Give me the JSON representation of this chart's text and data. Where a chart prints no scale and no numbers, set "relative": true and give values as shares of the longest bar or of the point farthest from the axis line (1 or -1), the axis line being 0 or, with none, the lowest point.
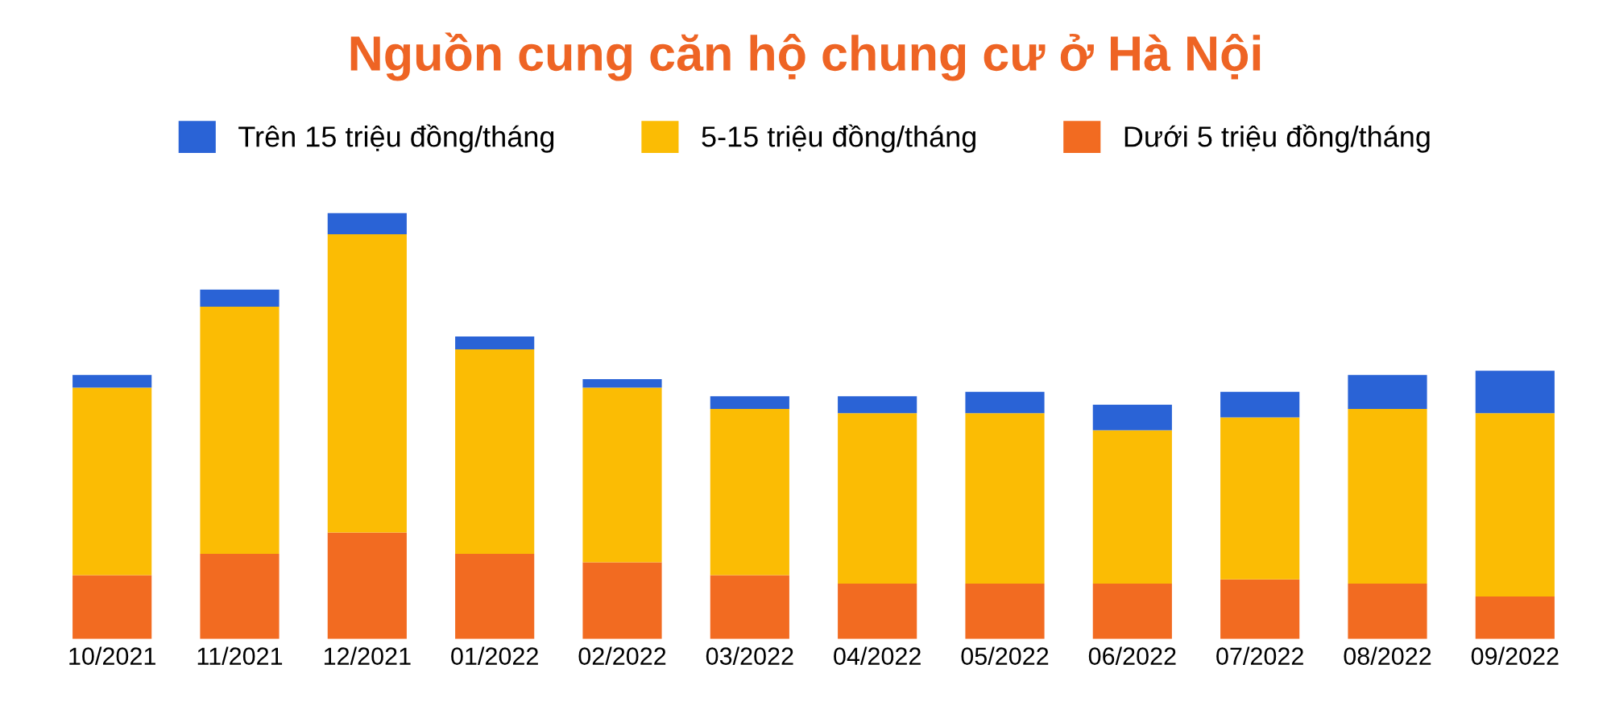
{
  "chart_data": {
    "type": "bar",
    "title": "Nguồn cung căn hộ chung cư ở Hà Nội",
    "categories": [
      "10/2021",
      "11/2021",
      "12/2021",
      "01/2022",
      "02/2022",
      "03/2022",
      "04/2022",
      "05/2022",
      "06/2022",
      "07/2022",
      "08/2022",
      "09/2022"
    ],
    "stacked": true,
    "relative": true,
    "legend": "top",
    "grid": false,
    "series": [
      {
        "name": "Dưới 5 triệu đồng/tháng",
        "color": "#f26b21",
        "values": [
          0.15,
          0.2,
          0.25,
          0.2,
          0.18,
          0.15,
          0.13,
          0.13,
          0.13,
          0.14,
          0.13,
          0.1
        ]
      },
      {
        "name": "5-15 triệu đồng/tháng",
        "color": "#fbbc04",
        "values": [
          0.44,
          0.58,
          0.7,
          0.48,
          0.41,
          0.39,
          0.4,
          0.4,
          0.36,
          0.38,
          0.41,
          0.43
        ]
      },
      {
        "name": "Trên 15 triệu đồng/tháng",
        "color": "#2a63d6",
        "values": [
          0.03,
          0.04,
          0.05,
          0.03,
          0.02,
          0.03,
          0.04,
          0.05,
          0.06,
          0.06,
          0.08,
          0.1
        ]
      }
    ]
  }
}
